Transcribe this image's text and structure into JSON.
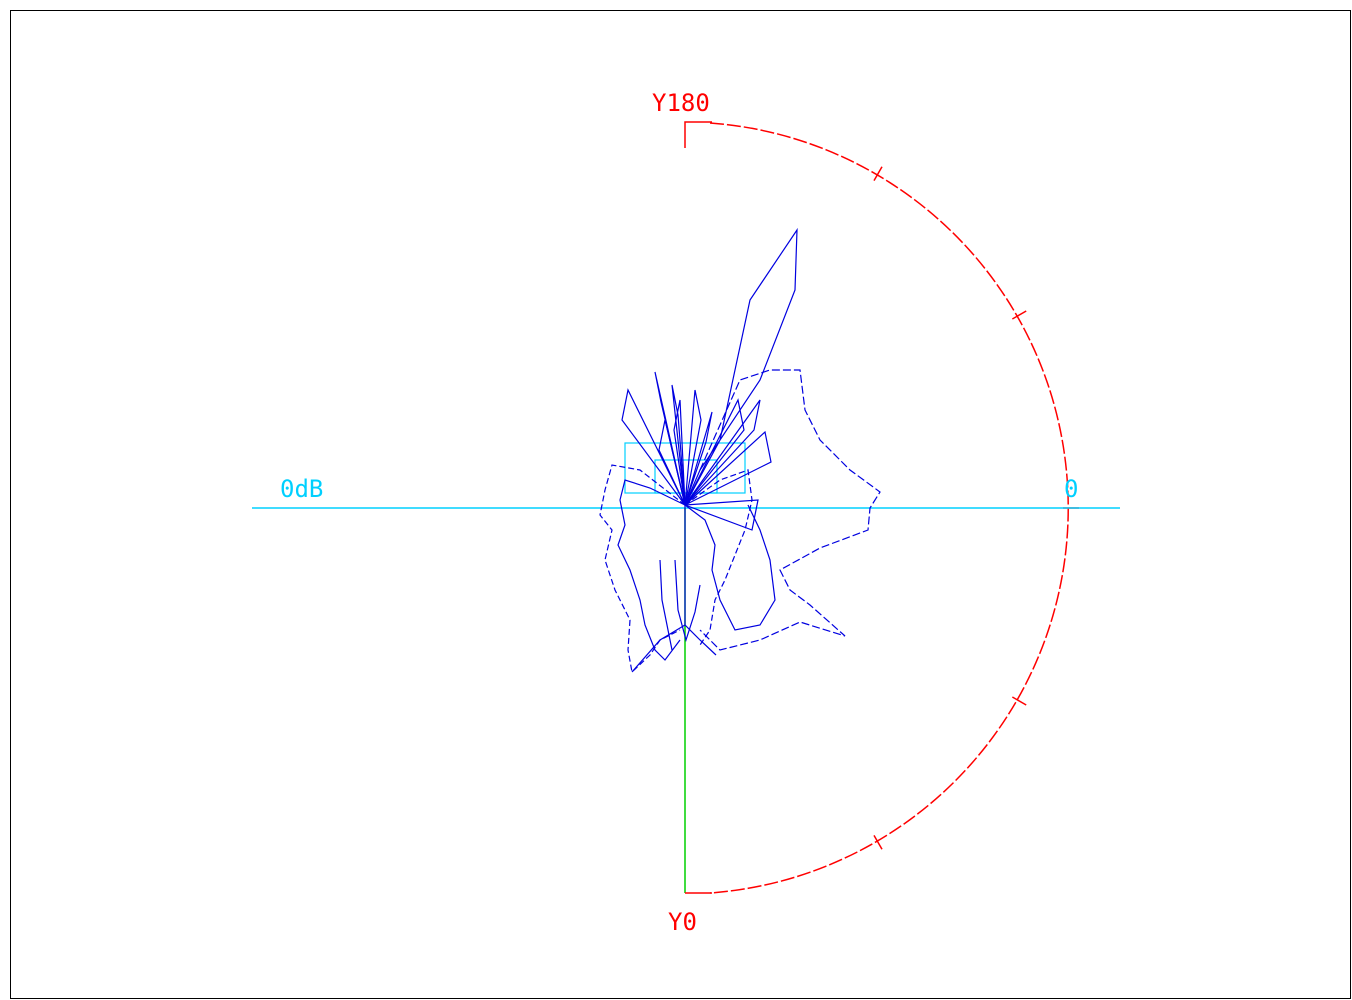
{
  "plot": {
    "labels": {
      "top": "Y180",
      "bottom": "Y0",
      "horizontal_axis_left": "0dB",
      "horizontal_axis_right": "0"
    },
    "colors": {
      "semicircle": "#ff0000",
      "horizontal_axis": "#00d0ff",
      "lower_vertical_axis": "#00d000",
      "pattern": "#0000e0",
      "reference_boxes": "#00d0ff"
    }
  },
  "chart_data": {
    "type": "polar",
    "angle_range": [
      0,
      180
    ],
    "angle_labels": [
      "Y0",
      "Y180"
    ],
    "radial_reference": "0dB",
    "radial_max_label": "0",
    "tick_count": 5
  }
}
